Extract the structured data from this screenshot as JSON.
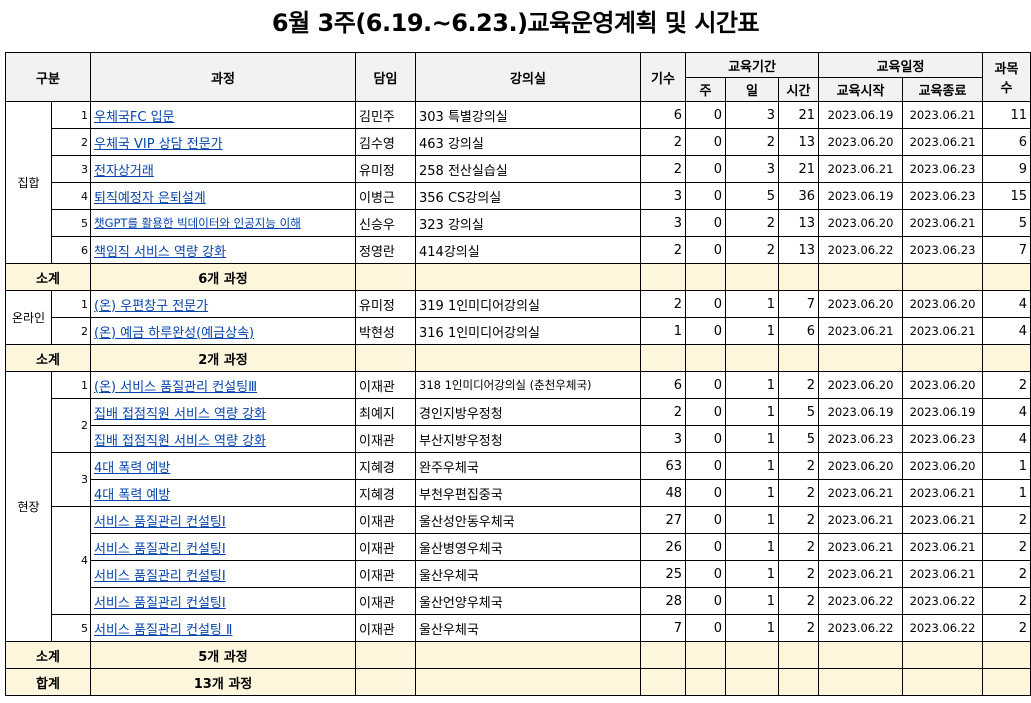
{
  "title": "6월 3주(6.19.~6.23.)교육운영계획 및 시간표",
  "headers": {
    "category": "구분",
    "course": "과정",
    "instructor": "담임",
    "room": "강의실",
    "cohort": "기수",
    "period": "교육기간",
    "week": "주",
    "day": "일",
    "hours": "시간",
    "schedule": "교육일정",
    "start": "교육시작",
    "end": "교육종료",
    "subjects_1": "과목",
    "subjects_2": "수"
  },
  "groups": {
    "g1": {
      "name": "집합",
      "subtotal_label": "소계",
      "subtotal_value": "6개 과정"
    },
    "g2": {
      "name": "온라인",
      "subtotal_label": "소계",
      "subtotal_value": "2개 과정"
    },
    "g3": {
      "name": "현장",
      "subtotal_label": "소계",
      "subtotal_value": "5개 과정"
    },
    "total_label": "합계",
    "total_value": "13개 과정"
  },
  "rows": [
    {
      "no": "1",
      "course": "우체국FC 입문",
      "instructor": "김민주",
      "room": "303 특별강의실",
      "cohort": "6",
      "week": "0",
      "day": "3",
      "hours": "21",
      "start": "2023.06.19",
      "end": "2023.06.21",
      "subjects": "11"
    },
    {
      "no": "2",
      "course": "우체국 VIP 상담 전문가",
      "instructor": "김수영",
      "room": "463 강의실",
      "cohort": "2",
      "week": "0",
      "day": "2",
      "hours": "13",
      "start": "2023.06.20",
      "end": "2023.06.21",
      "subjects": "6"
    },
    {
      "no": "3",
      "course": "전자상거래",
      "instructor": "유미정",
      "room": "258 전산실습실",
      "cohort": "2",
      "week": "0",
      "day": "3",
      "hours": "21",
      "start": "2023.06.21",
      "end": "2023.06.23",
      "subjects": "9"
    },
    {
      "no": "4",
      "course": "퇴직예정자 은퇴설계",
      "instructor": "이병근",
      "room": "356 CS강의실",
      "cohort": "3",
      "week": "0",
      "day": "5",
      "hours": "36",
      "start": "2023.06.19",
      "end": "2023.06.23",
      "subjects": "15"
    },
    {
      "no": "5",
      "course": "챗GPT를 활용한 빅데이터와 인공지능 이해",
      "instructor": "신승우",
      "room": "323 강의실",
      "cohort": "3",
      "week": "0",
      "day": "2",
      "hours": "13",
      "start": "2023.06.20",
      "end": "2023.06.21",
      "subjects": "5"
    },
    {
      "no": "6",
      "course": "책임직 서비스 역량 강화",
      "instructor": "정영란",
      "room": "414강의실",
      "cohort": "2",
      "week": "0",
      "day": "2",
      "hours": "13",
      "start": "2023.06.22",
      "end": "2023.06.23",
      "subjects": "7"
    },
    {
      "no": "1",
      "course": "(온) 우편창구 전문가",
      "instructor": "유미정",
      "room": "319 1인미디어강의실",
      "cohort": "2",
      "week": "0",
      "day": "1",
      "hours": "7",
      "start": "2023.06.20",
      "end": "2023.06.20",
      "subjects": "4"
    },
    {
      "no": "2",
      "course": "(온) 예금 하루완성(예금상속)",
      "instructor": "박현성",
      "room": "316 1인미디어강의실",
      "cohort": "1",
      "week": "0",
      "day": "1",
      "hours": "6",
      "start": "2023.06.21",
      "end": "2023.06.21",
      "subjects": "4"
    },
    {
      "no": "1",
      "course": "(온) 서비스 품질관리 컨설팅Ⅲ",
      "instructor": "이재관",
      "room": "318 1인미디어강의실 (춘천우체국)",
      "cohort": "6",
      "week": "0",
      "day": "1",
      "hours": "2",
      "start": "2023.06.20",
      "end": "2023.06.20",
      "subjects": "2"
    },
    {
      "no": "2",
      "course": "집배 접점직원 서비스 역량 강화",
      "instructor": "최예지",
      "room": "경인지방우정청",
      "cohort": "2",
      "week": "0",
      "day": "1",
      "hours": "5",
      "start": "2023.06.19",
      "end": "2023.06.19",
      "subjects": "4"
    },
    {
      "no": "",
      "course": "집배 접점직원 서비스 역량 강화",
      "instructor": "이재관",
      "room": "부산지방우정청",
      "cohort": "3",
      "week": "0",
      "day": "1",
      "hours": "5",
      "start": "2023.06.23",
      "end": "2023.06.23",
      "subjects": "4"
    },
    {
      "no": "3",
      "course": "4대 폭력 예방",
      "instructor": "지혜경",
      "room": "완주우체국",
      "cohort": "63",
      "week": "0",
      "day": "1",
      "hours": "2",
      "start": "2023.06.20",
      "end": "2023.06.20",
      "subjects": "1"
    },
    {
      "no": "",
      "course": "4대 폭력 예방",
      "instructor": "지혜경",
      "room": "부천우편집중국",
      "cohort": "48",
      "week": "0",
      "day": "1",
      "hours": "2",
      "start": "2023.06.21",
      "end": "2023.06.21",
      "subjects": "1"
    },
    {
      "no": "4",
      "course": "서비스 품질관리 컨설팅Ⅰ",
      "instructor": "이재관",
      "room": "울산성안동우체국",
      "cohort": "27",
      "week": "0",
      "day": "1",
      "hours": "2",
      "start": "2023.06.21",
      "end": "2023.06.21",
      "subjects": "2"
    },
    {
      "no": "",
      "course": "서비스 품질관리 컨설팅Ⅰ",
      "instructor": "이재관",
      "room": "울산병영우체국",
      "cohort": "26",
      "week": "0",
      "day": "1",
      "hours": "2",
      "start": "2023.06.21",
      "end": "2023.06.21",
      "subjects": "2"
    },
    {
      "no": "",
      "course": "서비스 품질관리 컨설팅Ⅰ",
      "instructor": "이재관",
      "room": "울산우체국",
      "cohort": "25",
      "week": "0",
      "day": "1",
      "hours": "2",
      "start": "2023.06.21",
      "end": "2023.06.21",
      "subjects": "2"
    },
    {
      "no": "",
      "course": "서비스 품질관리 컨설팅Ⅰ",
      "instructor": "이재관",
      "room": "울산언양우체국",
      "cohort": "28",
      "week": "0",
      "day": "1",
      "hours": "2",
      "start": "2023.06.22",
      "end": "2023.06.22",
      "subjects": "2"
    },
    {
      "no": "5",
      "course": "서비스 품질관리 컨설팅 Ⅱ",
      "instructor": "이재관",
      "room": "울산우체국",
      "cohort": "7",
      "week": "0",
      "day": "1",
      "hours": "2",
      "start": "2023.06.22",
      "end": "2023.06.22",
      "subjects": "2"
    }
  ]
}
